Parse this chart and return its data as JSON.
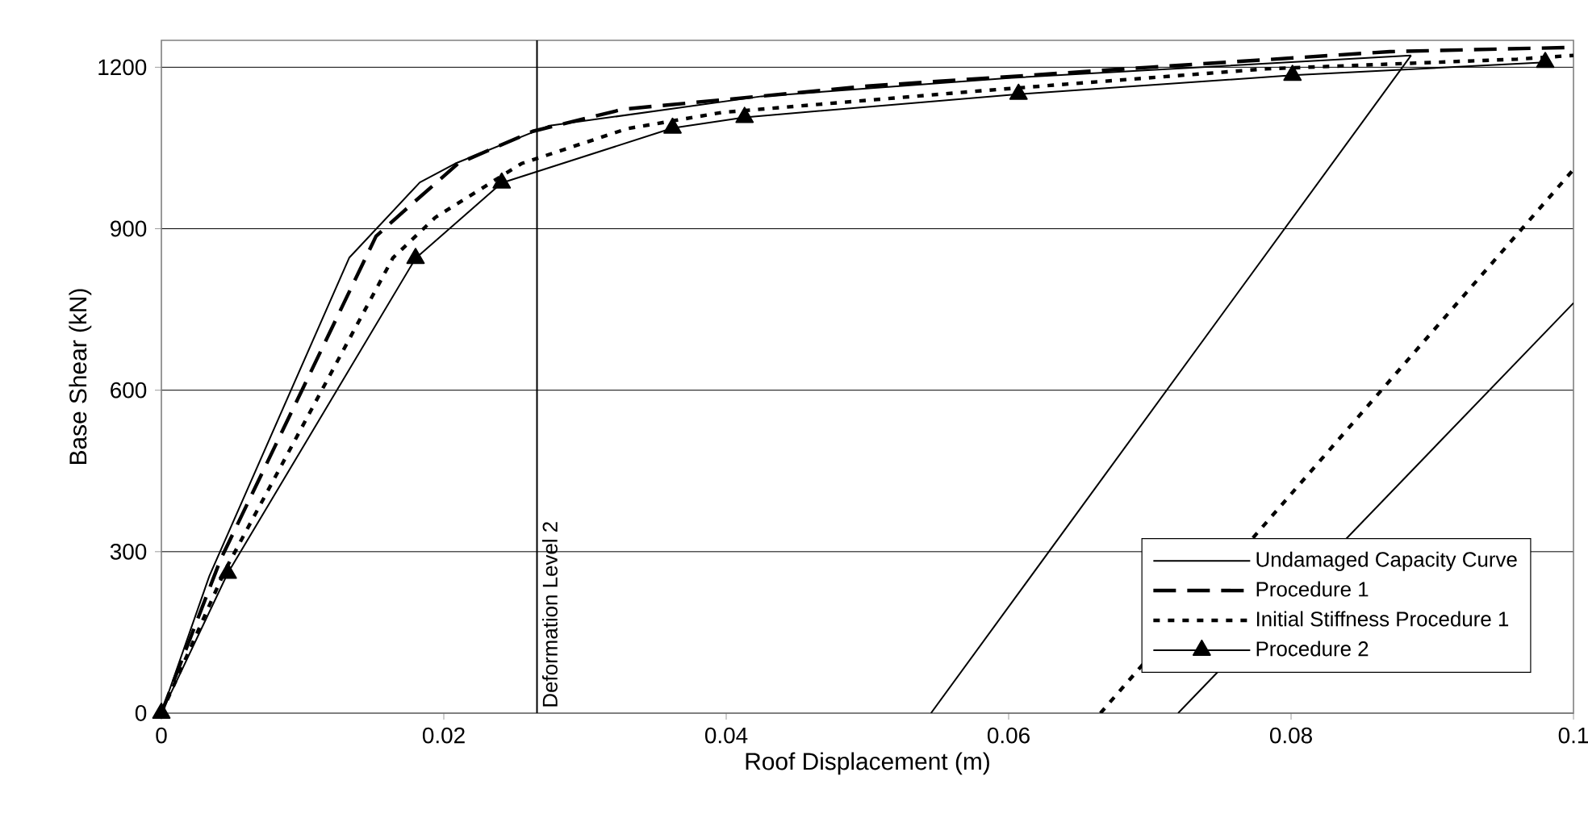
{
  "chart_data": {
    "type": "line",
    "xlabel": "Roof Displacement (m)",
    "ylabel": "Base Shear (kN)",
    "xlim": [
      0,
      0.1
    ],
    "ylim": [
      0,
      1250
    ],
    "xticks": [
      0,
      0.02,
      0.04,
      0.06,
      0.08,
      0.1
    ],
    "yticks": [
      0,
      300,
      600,
      900,
      1200
    ],
    "grid": "y",
    "legend": "bottom right",
    "series": [
      {
        "name": "Undamaged Capacity Curve",
        "color": "#000000",
        "line_style": "solid",
        "marker": "none",
        "x": [
          0,
          0.0034,
          0.0133,
          0.0183,
          0.0208,
          0.0274,
          0.0425,
          0.06,
          0.0885
        ],
        "values": [
          0,
          255,
          846,
          986,
          1021,
          1091,
          1146,
          1180,
          1222
        ]
      },
      {
        "name": "Procedure 1",
        "color": "#000000",
        "line_style": "dashed",
        "marker": "none",
        "x": [
          0,
          0.0042,
          0.0152,
          0.0171,
          0.021,
          0.0263,
          0.0327,
          0.05,
          0.07,
          0.087,
          0.1
        ],
        "values": [
          0,
          286,
          886,
          931,
          1021,
          1081,
          1122,
          1165,
          1200,
          1229,
          1237
        ]
      },
      {
        "name": "Initial Stiffness Procedure 1",
        "color": "#000000",
        "line_style": "dotted",
        "marker": "none",
        "x": [
          0,
          0.0045,
          0.0164,
          0.0194,
          0.0255,
          0.033,
          0.0397,
          0.0584,
          0.0782,
          0.096,
          0.1
        ],
        "values": [
          0,
          265,
          846,
          921,
          1021,
          1086,
          1116,
          1157,
          1197,
          1215,
          1222
        ]
      },
      {
        "name": "Procedure 2",
        "color": "#000000",
        "line_style": "solid",
        "marker": "triangle",
        "x": [
          0,
          0.0047,
          0.018,
          0.0241,
          0.0362,
          0.0413,
          0.0607,
          0.0801,
          0.098
        ],
        "values": [
          0,
          260,
          845,
          985,
          1087,
          1107,
          1150,
          1185,
          1209
        ]
      },
      {
        "color": "#000000",
        "line_style": "solid",
        "marker": "none",
        "x": [
          0.0545,
          0.0885
        ],
        "values": [
          0,
          1222
        ]
      },
      {
        "color": "#000000",
        "line_style": "dotted",
        "marker": "none",
        "x": [
          0.0665,
          0.1
        ],
        "values": [
          0,
          1010
        ]
      },
      {
        "color": "#000000",
        "line_style": "solid",
        "marker": "none",
        "x": [
          0.072,
          0.1
        ],
        "values": [
          0,
          762
        ]
      }
    ],
    "ref_lines": [
      {
        "axis": "x",
        "value": 0.0266,
        "label": "Deformation Level 2",
        "color": "#000000",
        "line_style": "solid"
      }
    ]
  }
}
